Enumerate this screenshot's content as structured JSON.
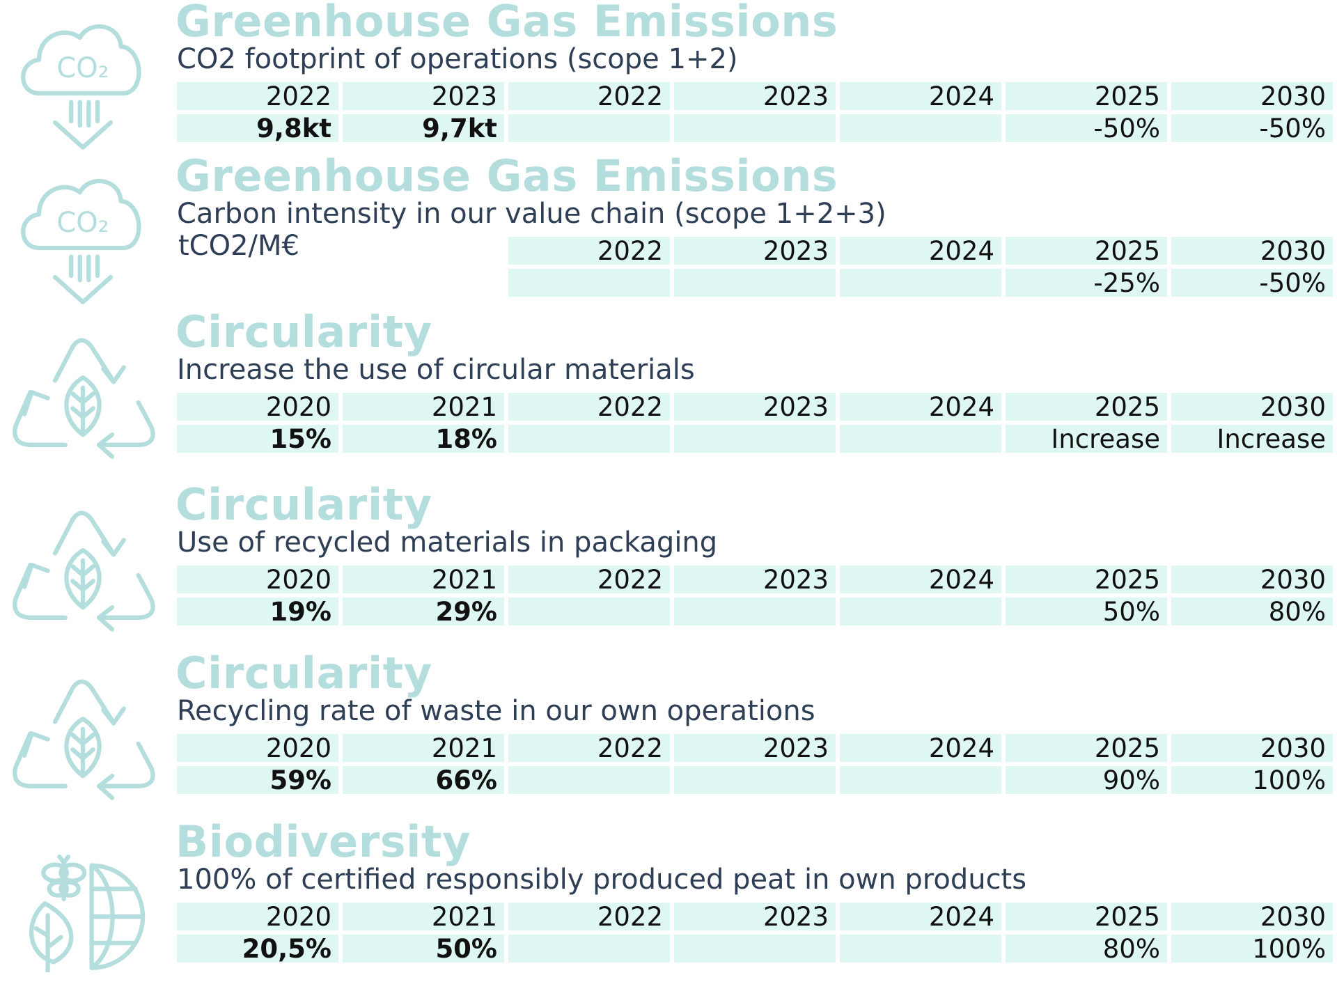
{
  "sections": [
    {
      "icon": "co2-cloud-icon",
      "title": "Greenhouse Gas Emissions",
      "subtitle": "CO2 footprint of operations (scope 1+2)",
      "unit": "",
      "years": [
        "2022",
        "2023",
        "2022",
        "2023",
        "2024",
        "2025",
        "2030"
      ],
      "values": [
        "9,8kt",
        "9,7kt",
        "",
        "",
        "",
        "-50%",
        "-50%"
      ]
    },
    {
      "icon": "co2-cloud-icon",
      "title": "Greenhouse Gas Emissions",
      "subtitle": "Carbon intensity in our value chain (scope 1+2+3)",
      "unit": "tCO2/M€",
      "years": [
        "",
        "",
        "2022",
        "2023",
        "2024",
        "2025",
        "2030"
      ],
      "values": [
        "",
        "",
        "",
        "",
        "",
        "-25%",
        "-50%"
      ]
    },
    {
      "icon": "recycle-leaf-icon",
      "title": "Circularity",
      "subtitle": "Increase the use of circular materials",
      "unit": "",
      "years": [
        "2020",
        "2021",
        "2022",
        "2023",
        "2024",
        "2025",
        "2030"
      ],
      "values": [
        "15%",
        "18%",
        "",
        "",
        "",
        "Increase",
        "Increase"
      ]
    },
    {
      "icon": "recycle-leaf-icon",
      "title": "Circularity",
      "subtitle": "Use of recycled materials in packaging",
      "unit": "",
      "years": [
        "2020",
        "2021",
        "2022",
        "2023",
        "2024",
        "2025",
        "2030"
      ],
      "values": [
        "19%",
        "29%",
        "",
        "",
        "",
        "50%",
        "80%"
      ]
    },
    {
      "icon": "recycle-leaf-icon",
      "title": "Circularity",
      "subtitle": "Recycling rate of waste in our own operations",
      "unit": "",
      "years": [
        "2020",
        "2021",
        "2022",
        "2023",
        "2024",
        "2025",
        "2030"
      ],
      "values": [
        "59%",
        "66%",
        "",
        "",
        "",
        "90%",
        "100%"
      ]
    },
    {
      "icon": "biodiversity-globe-icon",
      "title": "Biodiversity",
      "subtitle": "100% of certified responsibly produced peat in own products",
      "unit": "",
      "years": [
        "2020",
        "2021",
        "2022",
        "2023",
        "2024",
        "2025",
        "2030"
      ],
      "values": [
        "20,5%",
        "50%",
        "",
        "",
        "",
        "80%",
        "100%"
      ]
    }
  ]
}
